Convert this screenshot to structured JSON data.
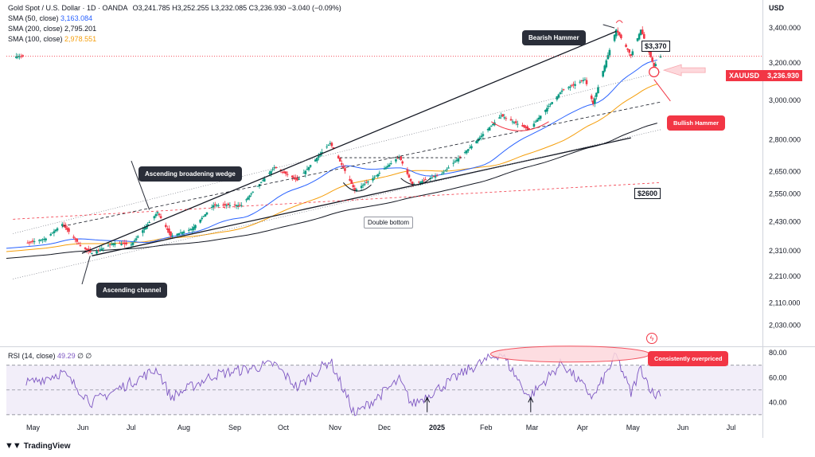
{
  "legend": {
    "symbol_line": "Gold Spot / U.S. Dollar · 1D · OANDA",
    "ohlc": "O3,241.785  H3,252.255  L3,232.085  C3,236.930  −3.040 (−0.09%)",
    "sma50_label": "SMA (50, close)",
    "sma50_value": "3,163.084",
    "sma200_label": "SMA (200, close)",
    "sma200_value": "2,795.201",
    "sma100_label": "SMA (100, close)",
    "sma100_value": "2,978.551"
  },
  "currency": "USD",
  "price_tag": {
    "symbol": "XAUUSD",
    "value": "3,236.930"
  },
  "rsi_legend": {
    "label": "RSI (14, close)",
    "value": "49.29",
    "extra": "∅  ∅"
  },
  "annotations": {
    "bearish_hammer": "Bearish Hammer",
    "bullish_hammer": "Bullish Hammer",
    "level_high": "$3,370",
    "level_2600": "$2600",
    "wedge": "Ascending broadening wedge",
    "channel": "Ascending channel",
    "double_bottom": "Double bottom",
    "overpriced": "Consistently overpriced"
  },
  "footer": {
    "brand": "TradingView"
  },
  "colors": {
    "up": "#089981",
    "down": "#f23645",
    "sma50": "#2962ff",
    "sma100": "#f59e0b",
    "sma200": "#131722",
    "rsi": "#7e57c2",
    "accent_red": "#f23645"
  },
  "chart_data": [
    {
      "type": "candlestick",
      "title": "Gold Spot / U.S. Dollar · 1D · OANDA",
      "x_axis": {
        "months": [
          "May",
          "Jun",
          "Jul",
          "Aug",
          "Sep",
          "Oct",
          "Nov",
          "Dec",
          "2025",
          "Feb",
          "Mar",
          "Apr",
          "May",
          "Jun",
          "Jul"
        ]
      },
      "y_axis": {
        "ticks": [
          "3,400.000",
          "3,200.000",
          "3,000.000",
          "2,800.000",
          "2,650.000",
          "2,550.000",
          "2,430.000",
          "2,310.000",
          "2,210.000",
          "2,110.000",
          "2,030.000"
        ],
        "scale": "log",
        "ylim": [
          1960,
          3520
        ]
      },
      "close_path": [
        {
          "t": "2024-04-28",
          "v": 2340
        },
        {
          "t": "2024-05-10",
          "v": 2360
        },
        {
          "t": "2024-05-20",
          "v": 2420
        },
        {
          "t": "2024-05-31",
          "v": 2330
        },
        {
          "t": "2024-06-07",
          "v": 2300
        },
        {
          "t": "2024-06-20",
          "v": 2340
        },
        {
          "t": "2024-07-01",
          "v": 2335
        },
        {
          "t": "2024-07-17",
          "v": 2470
        },
        {
          "t": "2024-07-25",
          "v": 2370
        },
        {
          "t": "2024-08-07",
          "v": 2400
        },
        {
          "t": "2024-08-20",
          "v": 2500
        },
        {
          "t": "2024-09-06",
          "v": 2500
        },
        {
          "t": "2024-09-26",
          "v": 2670
        },
        {
          "t": "2024-10-10",
          "v": 2610
        },
        {
          "t": "2024-10-30",
          "v": 2785
        },
        {
          "t": "2024-11-14",
          "v": 2565
        },
        {
          "t": "2024-11-25",
          "v": 2620
        },
        {
          "t": "2024-12-11",
          "v": 2720
        },
        {
          "t": "2024-12-19",
          "v": 2590
        },
        {
          "t": "2025-01-06",
          "v": 2640
        },
        {
          "t": "2025-01-24",
          "v": 2770
        },
        {
          "t": "2025-02-11",
          "v": 2920
        },
        {
          "t": "2025-02-28",
          "v": 2850
        },
        {
          "t": "2025-03-20",
          "v": 3050
        },
        {
          "t": "2025-04-03",
          "v": 3110
        },
        {
          "t": "2025-04-08",
          "v": 2980
        },
        {
          "t": "2025-04-22",
          "v": 3390
        },
        {
          "t": "2025-05-01",
          "v": 3240
        },
        {
          "t": "2025-05-07",
          "v": 3390
        },
        {
          "t": "2025-05-15",
          "v": 3180
        },
        {
          "t": "2025-05-19",
          "v": 3236.93
        }
      ],
      "series": [
        {
          "name": "SMA (50, close)",
          "last": 3163.084
        },
        {
          "name": "SMA (100, close)",
          "last": 2978.551
        },
        {
          "name": "SMA (200, close)",
          "last": 2795.201
        }
      ],
      "levels": [
        3370,
        2600
      ],
      "last_price": 3236.93
    },
    {
      "type": "line",
      "title": "RSI (14, close)",
      "y_axis": {
        "ticks": [
          "80.00",
          "60.00",
          "40.00"
        ],
        "ylim": [
          28,
          84
        ],
        "bands": [
          70,
          50,
          30
        ]
      },
      "last": 49.29,
      "path": [
        {
          "t": "2024-04-28",
          "v": 55
        },
        {
          "t": "2024-05-20",
          "v": 64
        },
        {
          "t": "2024-06-07",
          "v": 40
        },
        {
          "t": "2024-07-17",
          "v": 67
        },
        {
          "t": "2024-07-25",
          "v": 44
        },
        {
          "t": "2024-08-20",
          "v": 62
        },
        {
          "t": "2024-09-26",
          "v": 71
        },
        {
          "t": "2024-10-10",
          "v": 52
        },
        {
          "t": "2024-10-30",
          "v": 74
        },
        {
          "t": "2024-11-14",
          "v": 30
        },
        {
          "t": "2024-12-11",
          "v": 58
        },
        {
          "t": "2024-12-19",
          "v": 38
        },
        {
          "t": "2025-01-24",
          "v": 68
        },
        {
          "t": "2025-02-11",
          "v": 80
        },
        {
          "t": "2025-02-28",
          "v": 44
        },
        {
          "t": "2025-03-20",
          "v": 72
        },
        {
          "t": "2025-04-08",
          "v": 44
        },
        {
          "t": "2025-04-22",
          "v": 78
        },
        {
          "t": "2025-05-01",
          "v": 47
        },
        {
          "t": "2025-05-07",
          "v": 68
        },
        {
          "t": "2025-05-15",
          "v": 45
        },
        {
          "t": "2025-05-19",
          "v": 49.29
        }
      ]
    }
  ]
}
